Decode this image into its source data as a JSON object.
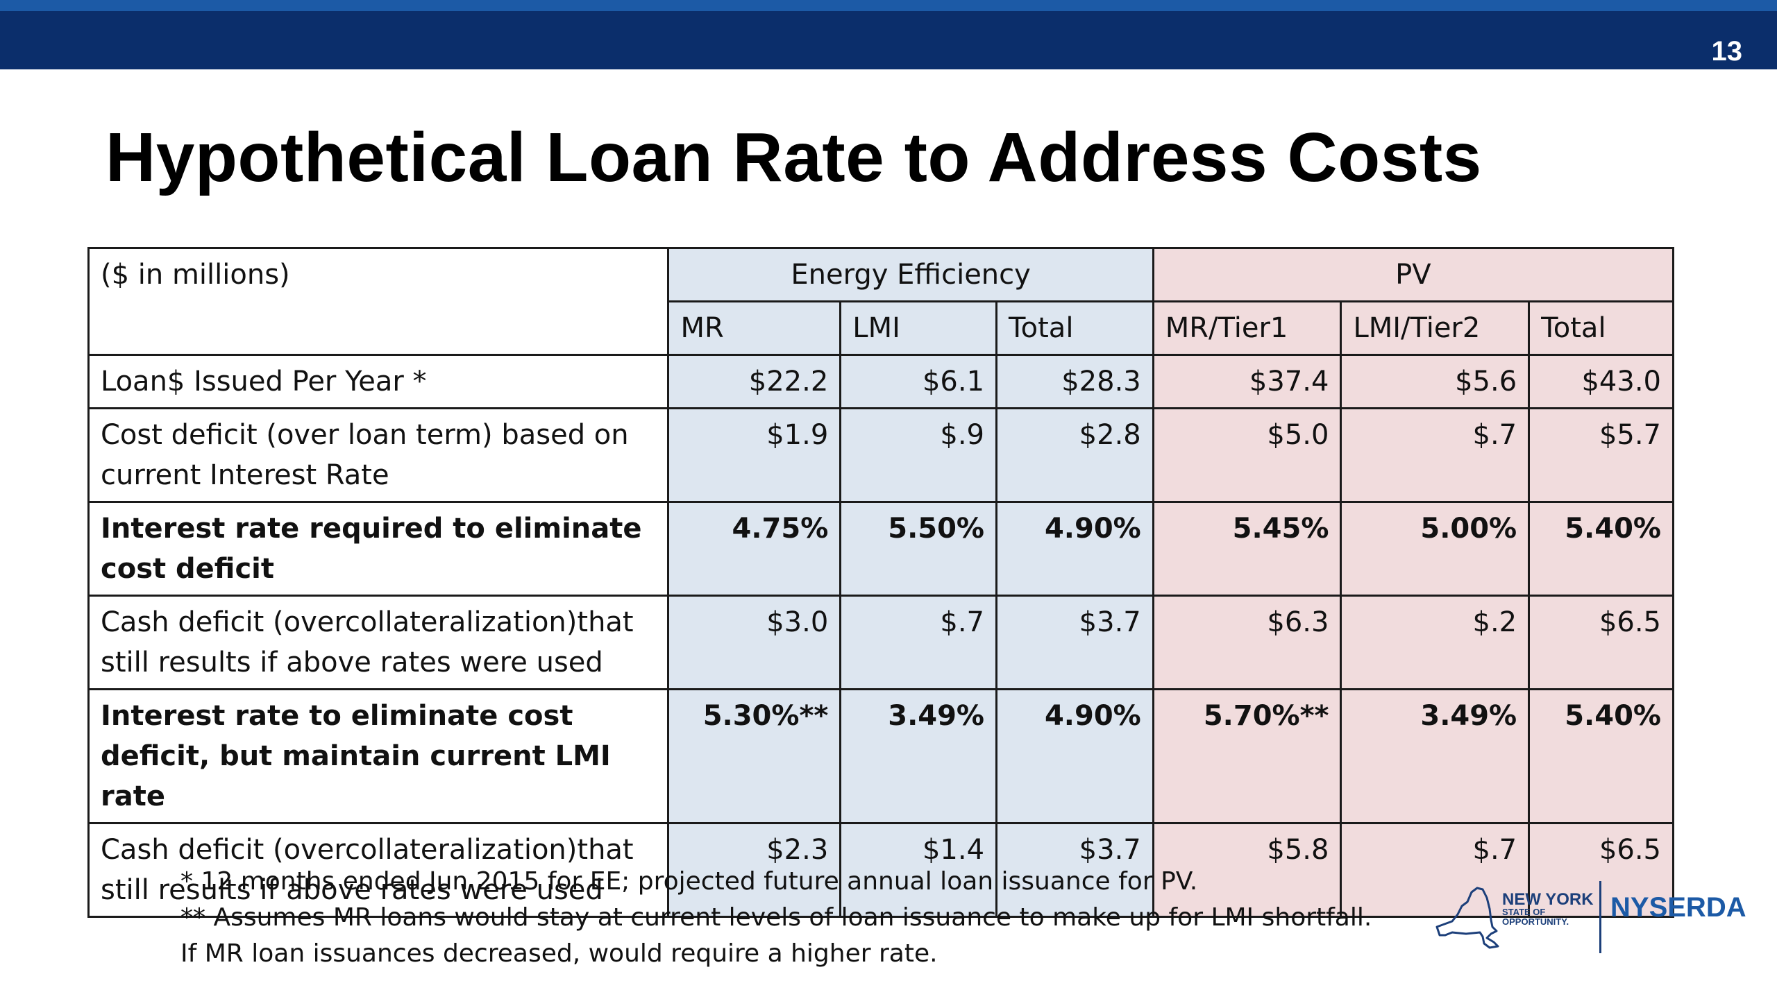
{
  "header": {
    "page_number": "13"
  },
  "title": "Hypothetical Loan Rate to Address Costs",
  "table": {
    "corner_label": "($ in millions)",
    "groups": {
      "ee": "Energy Efficiency",
      "pv": "PV"
    },
    "columns": [
      "MR",
      "LMI",
      "Total",
      "MR/Tier1",
      "LMI/Tier2",
      "Total"
    ],
    "rows": [
      {
        "label": "Loan$ Issued Per Year *",
        "bold": false,
        "values": [
          "$22.2",
          "$6.1",
          "$28.3",
          "$37.4",
          "$5.6",
          "$43.0"
        ]
      },
      {
        "label": "Cost deficit (over loan term) based on current Interest Rate",
        "bold": false,
        "values": [
          "$1.9",
          "$.9",
          "$2.8",
          "$5.0",
          "$.7",
          "$5.7"
        ]
      },
      {
        "label": "Interest rate required to eliminate cost deficit",
        "bold": true,
        "values": [
          "4.75%",
          "5.50%",
          "4.90%",
          "5.45%",
          "5.00%",
          "5.40%"
        ]
      },
      {
        "label": "Cash deficit (overcollateralization)that still results if above rates were used",
        "bold": false,
        "values": [
          "$3.0",
          "$.7",
          "$3.7",
          "$6.3",
          "$.2",
          "$6.5"
        ]
      },
      {
        "label": "Interest rate to eliminate cost deficit, but maintain current LMI rate",
        "bold": true,
        "values": [
          "5.30%**",
          "3.49%",
          "4.90%",
          "5.70%**",
          "3.49%",
          "5.40%"
        ]
      },
      {
        "label": "Cash deficit (overcollateralization)that still results if above rates were used",
        "bold": false,
        "values": [
          "$2.3",
          "$1.4",
          "$3.7",
          "$5.8",
          "$.7",
          "$6.5"
        ]
      }
    ]
  },
  "footnotes": [
    "* 12 months ended Jun 2015 for EE; projected future annual loan issuance for PV.",
    "** Assumes MR loans would stay at current levels of loan issuance to make up for LMI shortfall.",
    "If MR loan issuances decreased, would require a higher rate."
  ],
  "logo": {
    "ny_line1": "NEW YORK",
    "ny_line2": "STATE OF",
    "ny_line3": "OPPORTUNITY.",
    "org": "NYSERDA"
  },
  "colors": {
    "header_bar": "#0b2e6b",
    "header_stripe": "#1c5aa6",
    "ee_fill": "#dde6f0",
    "pv_fill": "#f1dcdd"
  }
}
